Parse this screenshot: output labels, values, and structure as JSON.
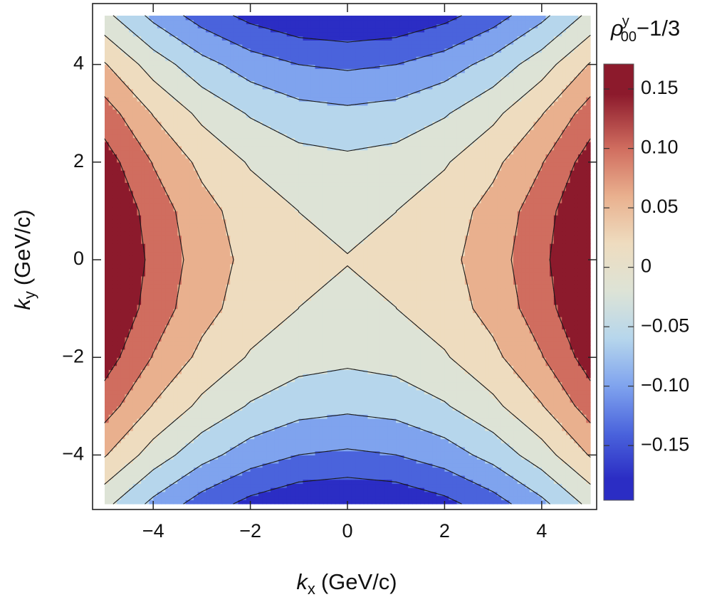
{
  "chart_data": {
    "type": "contour",
    "x": [
      -5,
      -4,
      -3,
      -2,
      -1,
      0,
      1,
      2,
      3,
      4,
      5
    ],
    "y": [
      -5,
      -4,
      -3,
      -2,
      -1,
      0,
      1,
      2,
      3,
      4,
      5
    ],
    "z": [
      [
        -0.029,
        -0.0902,
        -0.1378,
        -0.1718,
        -0.1922,
        -0.199,
        -0.1922,
        -0.1718,
        -0.1378,
        -0.0902,
        -0.029
      ],
      [
        0.043,
        -0.0182,
        -0.0658,
        -0.0998,
        -0.1202,
        -0.127,
        -0.1202,
        -0.0998,
        -0.0658,
        -0.0182,
        0.043
      ],
      [
        0.099,
        0.0378,
        -0.0098,
        -0.0438,
        -0.0642,
        -0.071,
        -0.0642,
        -0.0438,
        -0.0098,
        0.0378,
        0.099
      ],
      [
        0.139,
        0.0778,
        0.0302,
        -0.0038,
        -0.0242,
        -0.031,
        -0.0242,
        -0.0038,
        0.0302,
        0.0778,
        0.139
      ],
      [
        0.163,
        0.1018,
        0.0542,
        0.0202,
        -0.0002,
        -0.007,
        -0.0002,
        0.0202,
        0.0542,
        0.1018,
        0.163
      ],
      [
        0.171,
        0.1098,
        0.0622,
        0.0282,
        0.0078,
        0.001,
        0.0078,
        0.0282,
        0.0622,
        0.1098,
        0.171
      ],
      [
        0.163,
        0.1018,
        0.0542,
        0.0202,
        -0.0002,
        -0.007,
        -0.0002,
        0.0202,
        0.0542,
        0.1018,
        0.163
      ],
      [
        0.139,
        0.0778,
        0.0302,
        -0.0038,
        -0.0242,
        -0.031,
        -0.0242,
        -0.0038,
        0.0302,
        0.0778,
        0.139
      ],
      [
        0.099,
        0.0378,
        -0.0098,
        -0.0438,
        -0.0642,
        -0.071,
        -0.0642,
        -0.0438,
        -0.0098,
        0.0378,
        0.099
      ],
      [
        0.043,
        -0.0182,
        -0.0658,
        -0.0998,
        -0.1202,
        -0.127,
        -0.1202,
        -0.0998,
        -0.0658,
        -0.0182,
        0.043
      ],
      [
        -0.029,
        -0.0902,
        -0.1378,
        -0.1718,
        -0.1922,
        -0.199,
        -0.1922,
        -0.1718,
        -0.1378,
        -0.0902,
        -0.029
      ]
    ],
    "levels": [
      -0.16,
      -0.12,
      -0.08,
      -0.04,
      0,
      0.04,
      0.08,
      0.12
    ],
    "colors": [
      "#2b2dc4",
      "#4a63dc",
      "#7fa3ee",
      "#b6d6ec",
      "#dde3d6",
      "#eedcbf",
      "#e9b08e",
      "#d06d5f",
      "#8c1a2c"
    ],
    "line_color": "#1a1a1a",
    "xlim": [
      -5,
      5
    ],
    "ylim": [
      -5,
      5
    ],
    "xticks": [
      {
        "value": -4,
        "label": "−4"
      },
      {
        "value": -2,
        "label": "−2"
      },
      0,
      2,
      4
    ],
    "yticks": [
      {
        "value": -4,
        "label": "−4"
      },
      {
        "value": -2,
        "label": "−2"
      },
      0,
      2,
      4
    ],
    "xlabel": {
      "symbol": "k",
      "subscript": "x",
      "unit": "(GeV/c)"
    },
    "ylabel": {
      "symbol": "k",
      "subscript": "y",
      "unit": "(GeV/c)"
    },
    "colorbar": {
      "lim": [
        -0.196,
        0.171
      ],
      "ticks": [
        {
          "value": -0.15,
          "label": "−0.15"
        },
        {
          "value": -0.1,
          "label": "−0.10"
        },
        {
          "value": -0.05,
          "label": "−0.05"
        },
        0,
        {
          "value": 0.05,
          "label": "0.05"
        },
        {
          "value": 0.1,
          "label": "0.10"
        },
        0.15
      ],
      "label": {
        "symbol": "ρ",
        "superscript": "y",
        "subscript": "00",
        "rest": "−1/3"
      }
    }
  }
}
